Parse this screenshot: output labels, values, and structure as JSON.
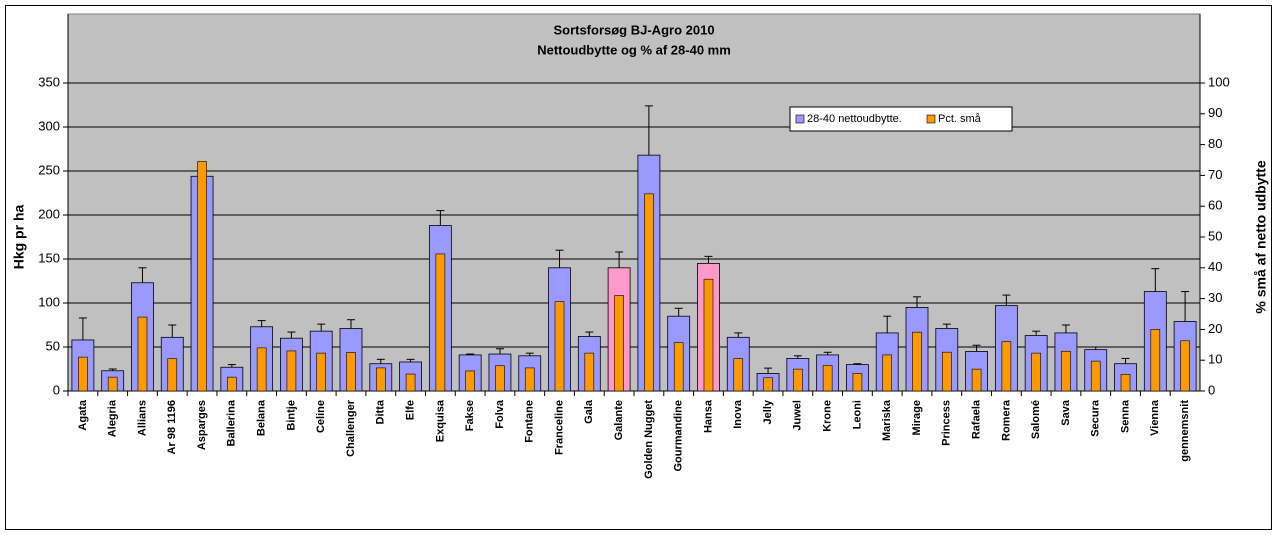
{
  "chart_data": {
    "type": "bar",
    "title": "Sortsforsøg BJ-Agro 2010",
    "subtitle": "Nettoudbytte og % af 28-40 mm",
    "ylabel": "Hkg pr ha",
    "y2label": "% små af netto udbytte",
    "categories": [
      "Agata",
      "Alegria",
      "Allians",
      "Ar 98 1196",
      "Asparges",
      "Ballerina",
      "Belana",
      "Bintje",
      "Celine",
      "Challenger",
      "Ditta",
      "Elfe",
      "Exquisa",
      "Fakse",
      "Folva",
      "Fontane",
      "Franceline",
      "Gala",
      "Galante",
      "Golden Nugget",
      "Gourmandine",
      "Hansa",
      "Inova",
      "Jelly",
      "Juwel",
      "Krone",
      "Leoni",
      "Mariska",
      "Mirage",
      "Princess",
      "Rafaela",
      "Romera",
      "Salomé",
      "Sava",
      "Secura",
      "Senna",
      "Vienna",
      "gennemsnit"
    ],
    "series": [
      {
        "name": "28-40 nettoudbytte.",
        "color": "#9999ff",
        "point_colors": {
          "18": "#ff99cc",
          "21": "#ff99cc"
        },
        "values": [
          58,
          23,
          123,
          61,
          244,
          27,
          73,
          60,
          68,
          71,
          31,
          33,
          188,
          41,
          42,
          40,
          140,
          62,
          140,
          268,
          85,
          145,
          61,
          20,
          37,
          41,
          30,
          66,
          95,
          71,
          45,
          97,
          63,
          66,
          47,
          31,
          113,
          79
        ],
        "errors": [
          25,
          2,
          17,
          14,
          0,
          3,
          7,
          7,
          8,
          10,
          5,
          3,
          17,
          1,
          6,
          3,
          20,
          5,
          18,
          56,
          9,
          8,
          5,
          6,
          3,
          3,
          1,
          19,
          12,
          5,
          7,
          12,
          5,
          9,
          3,
          6,
          26,
          34
        ]
      },
      {
        "name": "Pct. små",
        "color": "#ff9900",
        "axis": "y2",
        "values": [
          11,
          4.5,
          24,
          10.5,
          74.5,
          4.5,
          14,
          13,
          12.3,
          12.5,
          7.5,
          5.5,
          44.5,
          6.5,
          8.2,
          7.5,
          29,
          12.3,
          31,
          64,
          15.7,
          36.3,
          10.5,
          4.3,
          7.1,
          8.3,
          5.7,
          11.7,
          19.1,
          12.6,
          7.1,
          16,
          12.3,
          12.9,
          9.7,
          5.4,
          20,
          16.3
        ]
      }
    ],
    "ylim": [
      0,
      350
    ],
    "yticks": [
      0,
      50,
      100,
      150,
      200,
      250,
      300,
      350
    ],
    "y2lim": [
      0,
      100
    ],
    "y2ticks": [
      0,
      10,
      20,
      30,
      40,
      50,
      60,
      70,
      80,
      90,
      100
    ],
    "grid": true,
    "legend": "top-right"
  }
}
